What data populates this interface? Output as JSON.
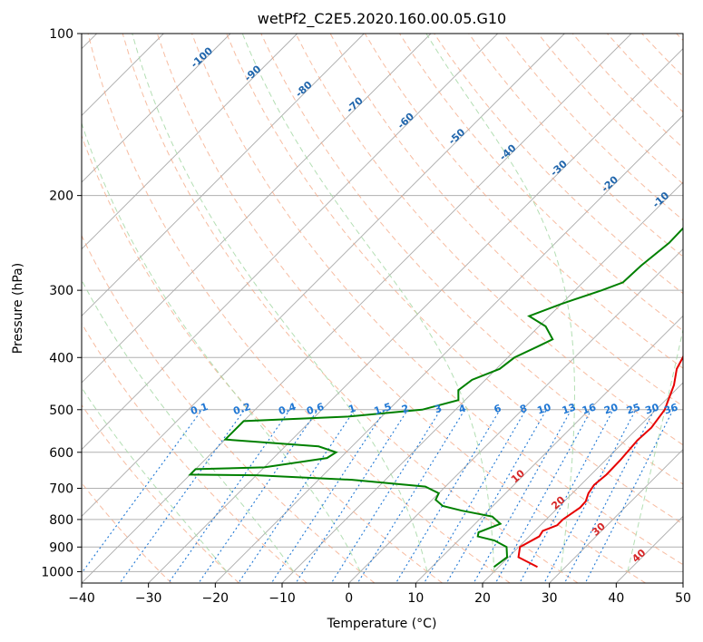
{
  "chart_data": {
    "type": "line",
    "title": "wetPf2_C2E5.2020.160.00.05.G10",
    "xlabel": "Temperature (°C)",
    "ylabel": "Pressure (hPa)",
    "xlim": [
      -40,
      50
    ],
    "ylim": [
      1050,
      100
    ],
    "y_scale": "log",
    "grid": true,
    "x_ticks": [
      "-40",
      "-30",
      "-20",
      "-10",
      "0",
      "10",
      "20",
      "30",
      "40",
      "50"
    ],
    "y_ticks": [
      "100",
      "200",
      "300",
      "400",
      "500",
      "600",
      "700",
      "800",
      "900",
      "1000"
    ],
    "series": [
      {
        "color": "#e60000",
        "points": [
          [
            25.8,
            980
          ],
          [
            21.5,
            940
          ],
          [
            20.2,
            900
          ],
          [
            21.5,
            860
          ],
          [
            21.2,
            840
          ],
          [
            22.5,
            820
          ],
          [
            22.5,
            800
          ],
          [
            23.3,
            760
          ],
          [
            23.2,
            740
          ],
          [
            22.4,
            715
          ],
          [
            22.0,
            690
          ],
          [
            22.3,
            660
          ],
          [
            22.2,
            620
          ],
          [
            21.8,
            570
          ],
          [
            22.0,
            540
          ],
          [
            21.3,
            500
          ],
          [
            19.0,
            450
          ],
          [
            17.0,
            420
          ],
          [
            16.2,
            400
          ],
          [
            14.0,
            360
          ],
          [
            11.6,
            320
          ],
          [
            9.0,
            290
          ],
          [
            6.5,
            260
          ],
          [
            4.0,
            230
          ],
          [
            2.2,
            205
          ],
          [
            1.3,
            188
          ],
          [
            -0.5,
            170
          ],
          [
            -1.7,
            155
          ],
          [
            -1.8,
            145
          ],
          [
            0.4,
            133
          ],
          [
            2.5,
            120
          ],
          [
            2.6,
            110
          ],
          [
            4.0,
            100
          ]
        ]
      },
      {
        "color": "#008000",
        "points": [
          [
            19.3,
            980
          ],
          [
            19.8,
            940
          ],
          [
            18.2,
            900
          ],
          [
            15.4,
            875
          ],
          [
            12.3,
            860
          ],
          [
            11.8,
            845
          ],
          [
            13.8,
            815
          ],
          [
            11.5,
            790
          ],
          [
            6.0,
            770
          ],
          [
            2.5,
            755
          ],
          [
            0.5,
            735
          ],
          [
            0.0,
            715
          ],
          [
            -3.0,
            695
          ],
          [
            -15.0,
            675
          ],
          [
            -30.0,
            662
          ],
          [
            -40.0,
            660
          ],
          [
            -40.0,
            645
          ],
          [
            -30.0,
            640
          ],
          [
            -22.0,
            615
          ],
          [
            -21.5,
            600
          ],
          [
            -25.0,
            585
          ],
          [
            -40.0,
            568
          ],
          [
            -40.0,
            525
          ],
          [
            -25.0,
            515
          ],
          [
            -15.0,
            500
          ],
          [
            -11.0,
            480
          ],
          [
            -12.5,
            460
          ],
          [
            -12.0,
            440
          ],
          [
            -9.5,
            420
          ],
          [
            -9.0,
            400
          ],
          [
            -7.0,
            380
          ],
          [
            -6.0,
            370
          ],
          [
            -9.0,
            350
          ],
          [
            -13.0,
            335
          ],
          [
            -10.0,
            318
          ],
          [
            -6.0,
            300
          ],
          [
            -4.0,
            290
          ],
          [
            -3.8,
            270
          ],
          [
            -3.0,
            245
          ],
          [
            -3.2,
            220
          ],
          [
            -3.5,
            205
          ],
          [
            -2.5,
            190
          ],
          [
            -1.0,
            175
          ],
          [
            1.0,
            155
          ],
          [
            2.0,
            135
          ],
          [
            0.5,
            130
          ],
          [
            -0.5,
            120
          ],
          [
            -0.8,
            115
          ],
          [
            1.5,
            108
          ],
          [
            3.0,
            100
          ]
        ]
      }
    ],
    "skew_lines": {
      "isotherm_spacing": 10,
      "dry_adiabat_labels": [
        "-100",
        "-90",
        "-80",
        "-70",
        "-60",
        "-50",
        "-40",
        "-30",
        "-20",
        "-10",
        "0",
        "10",
        "20",
        "30",
        "40"
      ],
      "moist_adiabat_labels": [],
      "mixing_ratio_labels": [
        "0.1",
        "0.2",
        "0.4",
        "0.6",
        "1",
        "1.5",
        "2",
        "3",
        "4",
        "6",
        "8",
        "10",
        "13",
        "16",
        "20",
        "25",
        "30",
        "36"
      ]
    },
    "colors": {
      "isotherm": "#aaaaaa",
      "dry_adiabat": "#f4a582",
      "moist_adiabat": "#a6d8a6",
      "mixing_ratio": "#1f77d4",
      "dry_adiabat_label_cold": "#2166ac",
      "dry_adiabat_label_warm": "#d62728"
    }
  }
}
